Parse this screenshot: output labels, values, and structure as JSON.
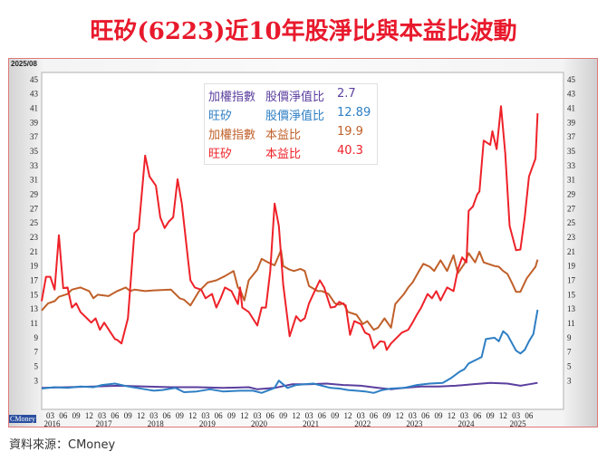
{
  "title": "旺矽(6223)近10年股淨比與本益比波動",
  "source": "資料來源：CMoney",
  "date_label": "2025/08",
  "watermark": "CMoney",
  "legend": [
    {
      "entity": "加權指數",
      "metric": "股價淨值比",
      "value": "2.7",
      "color": "#5b3f9e"
    },
    {
      "entity": "旺矽",
      "metric": "股價淨值比",
      "value": "12.89",
      "color": "#2e7fc4"
    },
    {
      "entity": "加權指數",
      "metric": "本益比",
      "value": "19.9",
      "color": "#c0602a"
    },
    {
      "entity": "旺矽",
      "metric": "本益比",
      "value": "40.3",
      "color": "#ee2229"
    }
  ],
  "chart_data": {
    "type": "line",
    "title": "旺矽(6223)近10年股淨比與本益比波動",
    "x_unit": "months since 2016-01",
    "xlim": [
      0,
      121
    ],
    "ylim": [
      -1,
      46
    ],
    "y_ticks": [
      "45",
      "43",
      "41",
      "39",
      "37",
      "35",
      "33",
      "31",
      "29",
      "27",
      "25",
      "23",
      "21",
      "19",
      "17",
      "15",
      "13",
      "11",
      "9",
      "7",
      "5",
      "3"
    ],
    "x_ticks": [
      {
        "t": 2,
        "m": "03",
        "y": "2016"
      },
      {
        "t": 5,
        "m": "06"
      },
      {
        "t": 8,
        "m": "09"
      },
      {
        "t": 11,
        "m": "12"
      },
      {
        "t": 14,
        "m": "03",
        "y": "2017"
      },
      {
        "t": 17,
        "m": "06"
      },
      {
        "t": 20,
        "m": "09"
      },
      {
        "t": 23,
        "m": "12"
      },
      {
        "t": 26,
        "m": "03",
        "y": "2018"
      },
      {
        "t": 29,
        "m": "06"
      },
      {
        "t": 32,
        "m": "09"
      },
      {
        "t": 35,
        "m": "12"
      },
      {
        "t": 38,
        "m": "03",
        "y": "2019"
      },
      {
        "t": 41,
        "m": "06"
      },
      {
        "t": 44,
        "m": "09"
      },
      {
        "t": 47,
        "m": "12"
      },
      {
        "t": 50,
        "m": "03",
        "y": "2020"
      },
      {
        "t": 53,
        "m": "06"
      },
      {
        "t": 56,
        "m": "09"
      },
      {
        "t": 59,
        "m": "12"
      },
      {
        "t": 62,
        "m": "03",
        "y": "2021"
      },
      {
        "t": 65,
        "m": "06"
      },
      {
        "t": 68,
        "m": "09"
      },
      {
        "t": 71,
        "m": "12"
      },
      {
        "t": 74,
        "m": "03",
        "y": "2022"
      },
      {
        "t": 77,
        "m": "06"
      },
      {
        "t": 80,
        "m": "09"
      },
      {
        "t": 83,
        "m": "12"
      },
      {
        "t": 86,
        "m": "03",
        "y": "2023"
      },
      {
        "t": 89,
        "m": "06"
      },
      {
        "t": 92,
        "m": "09"
      },
      {
        "t": 95,
        "m": "12"
      },
      {
        "t": 98,
        "m": "03",
        "y": "2024"
      },
      {
        "t": 101,
        "m": "06"
      },
      {
        "t": 104,
        "m": "09"
      },
      {
        "t": 107,
        "m": "12"
      },
      {
        "t": 110,
        "m": "03",
        "y": "2025"
      },
      {
        "t": 113,
        "m": "06"
      }
    ],
    "series": [
      {
        "name": "加權指數 股價淨值比",
        "color": "#5b3f9e",
        "points": [
          [
            0,
            2.0
          ],
          [
            6,
            2.1
          ],
          [
            12,
            2.2
          ],
          [
            18,
            2.3
          ],
          [
            24,
            2.2
          ],
          [
            30,
            2.1
          ],
          [
            36,
            2.1
          ],
          [
            42,
            2.0
          ],
          [
            48,
            2.1
          ],
          [
            50,
            1.8
          ],
          [
            54,
            2.0
          ],
          [
            58,
            2.5
          ],
          [
            62,
            2.5
          ],
          [
            66,
            2.6
          ],
          [
            70,
            2.4
          ],
          [
            74,
            2.3
          ],
          [
            78,
            2.0
          ],
          [
            81,
            1.8
          ],
          [
            84,
            2.0
          ],
          [
            88,
            2.2
          ],
          [
            92,
            2.2
          ],
          [
            96,
            2.3
          ],
          [
            100,
            2.5
          ],
          [
            104,
            2.7
          ],
          [
            108,
            2.6
          ],
          [
            111,
            2.3
          ],
          [
            113,
            2.5
          ],
          [
            115,
            2.7
          ]
        ]
      },
      {
        "name": "旺矽 股價淨值比",
        "color": "#2e7fc4",
        "points": [
          [
            0,
            1.9
          ],
          [
            3,
            2.1
          ],
          [
            6,
            2.0
          ],
          [
            9,
            2.2
          ],
          [
            12,
            2.1
          ],
          [
            14,
            2.4
          ],
          [
            17,
            2.6
          ],
          [
            20,
            2.2
          ],
          [
            24,
            1.8
          ],
          [
            26,
            1.6
          ],
          [
            28,
            1.7
          ],
          [
            31,
            2.0
          ],
          [
            33,
            1.4
          ],
          [
            36,
            1.5
          ],
          [
            39,
            1.8
          ],
          [
            42,
            1.5
          ],
          [
            46,
            1.6
          ],
          [
            49,
            1.6
          ],
          [
            51,
            1.3
          ],
          [
            54,
            2.0
          ],
          [
            55,
            3.0
          ],
          [
            57,
            2.0
          ],
          [
            59,
            2.4
          ],
          [
            61,
            2.5
          ],
          [
            63,
            2.6
          ],
          [
            65,
            2.3
          ],
          [
            67,
            2.0
          ],
          [
            69,
            1.9
          ],
          [
            71,
            1.7
          ],
          [
            73,
            1.6
          ],
          [
            75,
            1.5
          ],
          [
            77,
            1.3
          ],
          [
            79,
            1.7
          ],
          [
            81,
            1.9
          ],
          [
            84,
            2.0
          ],
          [
            87,
            2.4
          ],
          [
            90,
            2.6
          ],
          [
            93,
            2.7
          ],
          [
            95,
            3.4
          ],
          [
            97,
            4.3
          ],
          [
            98,
            4.6
          ],
          [
            99,
            5.4
          ],
          [
            101,
            6.0
          ],
          [
            102,
            6.3
          ],
          [
            103,
            8.8
          ],
          [
            105,
            9.0
          ],
          [
            106,
            8.5
          ],
          [
            107,
            9.9
          ],
          [
            108,
            9.4
          ],
          [
            110,
            7.2
          ],
          [
            111,
            6.8
          ],
          [
            112,
            7.3
          ],
          [
            113,
            8.5
          ],
          [
            114,
            9.5
          ],
          [
            115,
            12.89
          ]
        ]
      },
      {
        "name": "加權指數 本益比",
        "color": "#c0602a",
        "points": [
          [
            0,
            12.8
          ],
          [
            1.5,
            13.8
          ],
          [
            3,
            14.1
          ],
          [
            4,
            14.7
          ],
          [
            6,
            15.1
          ],
          [
            7,
            15.7
          ],
          [
            9,
            16.0
          ],
          [
            11,
            15.5
          ],
          [
            12,
            14.5
          ],
          [
            13,
            15.0
          ],
          [
            15.5,
            14.8
          ],
          [
            17.5,
            15.5
          ],
          [
            19.5,
            16.0
          ],
          [
            20.5,
            15.5
          ],
          [
            21.5,
            15.7
          ],
          [
            24,
            15.5
          ],
          [
            26,
            15.6
          ],
          [
            30,
            15.7
          ],
          [
            32,
            14.5
          ],
          [
            33,
            14.3
          ],
          [
            34.5,
            13.5
          ],
          [
            36.5,
            15.5
          ],
          [
            38.5,
            16.7
          ],
          [
            40.5,
            17.0
          ],
          [
            42.5,
            17.6
          ],
          [
            44.5,
            18.3
          ],
          [
            45.5,
            16.0
          ],
          [
            46,
            15.7
          ],
          [
            47,
            14.2
          ],
          [
            48,
            17.0
          ],
          [
            50,
            18.5
          ],
          [
            51,
            20.0
          ],
          [
            52.5,
            19.5
          ],
          [
            54,
            19.1
          ],
          [
            55.5,
            21.2
          ],
          [
            56,
            19.0
          ],
          [
            57.5,
            18.5
          ],
          [
            58.5,
            18.3
          ],
          [
            60,
            18.6
          ],
          [
            61,
            18.3
          ],
          [
            62,
            16.2
          ],
          [
            64,
            15.5
          ],
          [
            65,
            15.5
          ],
          [
            66.5,
            15.1
          ],
          [
            68,
            13.8
          ],
          [
            69,
            13.6
          ],
          [
            70,
            13.8
          ],
          [
            71,
            12.6
          ],
          [
            73,
            12.2
          ],
          [
            74.5,
            10.9
          ],
          [
            75.5,
            11.3
          ],
          [
            77,
            10.1
          ],
          [
            78,
            10.4
          ],
          [
            79.5,
            11.7
          ],
          [
            81,
            10.4
          ],
          [
            82,
            13.7
          ],
          [
            84,
            15.1
          ],
          [
            85,
            16.0
          ],
          [
            86,
            16.7
          ],
          [
            87.5,
            18.3
          ],
          [
            88.5,
            19.3
          ],
          [
            90,
            18.9
          ],
          [
            91,
            18.3
          ],
          [
            92.5,
            19.8
          ],
          [
            94,
            18.3
          ],
          [
            95.5,
            20.5
          ],
          [
            96.5,
            18.0
          ],
          [
            98,
            19.3
          ],
          [
            99,
            20.8
          ],
          [
            100.5,
            19.5
          ],
          [
            101.5,
            21.0
          ],
          [
            102.5,
            19.5
          ],
          [
            105,
            19.0
          ],
          [
            106,
            18.9
          ],
          [
            107,
            18.3
          ],
          [
            108,
            17.9
          ],
          [
            109,
            16.7
          ],
          [
            110,
            15.4
          ],
          [
            111,
            15.4
          ],
          [
            112.5,
            17.3
          ],
          [
            114.5,
            18.9
          ],
          [
            115,
            19.9
          ]
        ]
      },
      {
        "name": "旺矽 本益比",
        "color": "#ee2229",
        "points": [
          [
            0,
            14.1
          ],
          [
            1,
            17.5
          ],
          [
            2,
            17.5
          ],
          [
            3,
            15.7
          ],
          [
            4,
            23.3
          ],
          [
            5,
            15.9
          ],
          [
            6,
            16.0
          ],
          [
            7,
            13.2
          ],
          [
            8,
            13.8
          ],
          [
            9,
            12.6
          ],
          [
            10.5,
            11.7
          ],
          [
            11.5,
            11.1
          ],
          [
            12.5,
            11.7
          ],
          [
            13.5,
            10.1
          ],
          [
            14.5,
            11.1
          ],
          [
            16,
            9.7
          ],
          [
            17,
            8.8
          ],
          [
            17.5,
            8.7
          ],
          [
            18.5,
            8.2
          ],
          [
            20,
            11.7
          ],
          [
            21.5,
            23.6
          ],
          [
            22.5,
            24.2
          ],
          [
            24,
            34.4
          ],
          [
            25,
            31.5
          ],
          [
            26.5,
            30.2
          ],
          [
            27.5,
            25.8
          ],
          [
            28.5,
            24.3
          ],
          [
            29.5,
            25.2
          ],
          [
            30.5,
            25.8
          ],
          [
            31.5,
            31.1
          ],
          [
            32.5,
            27.7
          ],
          [
            34,
            19.5
          ],
          [
            34.5,
            17.0
          ],
          [
            35.5,
            16.0
          ],
          [
            37,
            15.7
          ],
          [
            38,
            14.5
          ],
          [
            39.5,
            15.1
          ],
          [
            40.5,
            13.2
          ],
          [
            41.5,
            14.5
          ],
          [
            42.5,
            16.0
          ],
          [
            44,
            15.5
          ],
          [
            45.5,
            13.7
          ],
          [
            46,
            16.0
          ],
          [
            46.5,
            13.2
          ],
          [
            48,
            12.6
          ],
          [
            50,
            10.7
          ],
          [
            51,
            13.2
          ],
          [
            52,
            13.2
          ],
          [
            53,
            18.3
          ],
          [
            54,
            27.7
          ],
          [
            55,
            24.6
          ],
          [
            56,
            16.4
          ],
          [
            57.5,
            9.2
          ],
          [
            59,
            12.0
          ],
          [
            60,
            11.3
          ],
          [
            61,
            11.7
          ],
          [
            62,
            13.8
          ],
          [
            63,
            15.1
          ],
          [
            64.5,
            17.0
          ],
          [
            65.5,
            16.0
          ],
          [
            67,
            13.2
          ],
          [
            68,
            13.3
          ],
          [
            69,
            14.0
          ],
          [
            70.5,
            13.5
          ],
          [
            71.5,
            9.4
          ],
          [
            72.5,
            11.3
          ],
          [
            74,
            10.9
          ],
          [
            75,
            9.7
          ],
          [
            76,
            9.4
          ],
          [
            77,
            7.5
          ],
          [
            78.5,
            8.5
          ],
          [
            79.5,
            8.4
          ],
          [
            80,
            7.3
          ],
          [
            81,
            8.2
          ],
          [
            83,
            9.4
          ],
          [
            83.5,
            9.7
          ],
          [
            85,
            10.1
          ],
          [
            86,
            11.1
          ],
          [
            87,
            12.2
          ],
          [
            88,
            13.2
          ],
          [
            89.5,
            15.1
          ],
          [
            90.5,
            14.5
          ],
          [
            91.5,
            15.5
          ],
          [
            92.5,
            14.2
          ],
          [
            94,
            16.0
          ],
          [
            95.5,
            15.5
          ],
          [
            96.5,
            18.5
          ],
          [
            97.5,
            20.2
          ],
          [
            98.5,
            19.5
          ],
          [
            99,
            26.7
          ],
          [
            100,
            27.3
          ],
          [
            101,
            29.0
          ],
          [
            101.5,
            29.4
          ],
          [
            102.5,
            36.5
          ],
          [
            104,
            35.9
          ],
          [
            104.5,
            37.8
          ],
          [
            105.5,
            35.3
          ],
          [
            106.5,
            41.3
          ],
          [
            107.5,
            34.7
          ],
          [
            108.5,
            24.6
          ],
          [
            110,
            21.2
          ],
          [
            111,
            21.3
          ],
          [
            112,
            25.8
          ],
          [
            113,
            31.5
          ],
          [
            114.5,
            34.0
          ],
          [
            115,
            40.3
          ]
        ]
      }
    ]
  }
}
